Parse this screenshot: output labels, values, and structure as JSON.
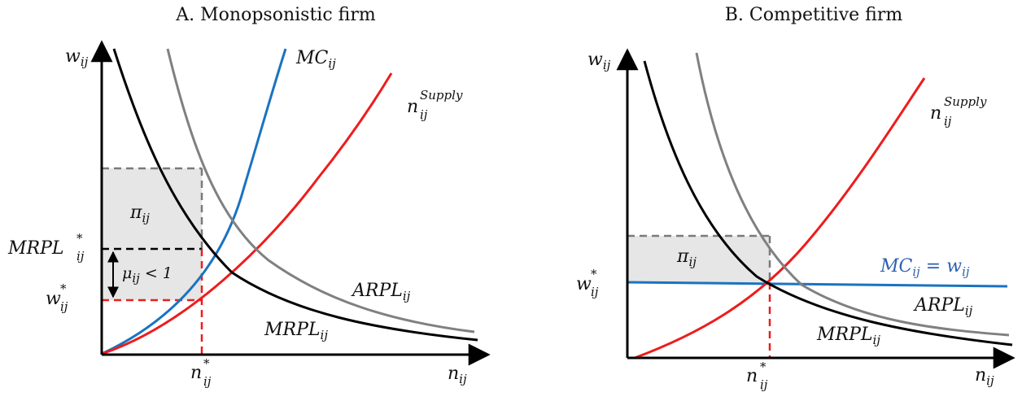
{
  "panel_a": {
    "title": "A. Monopsonistic firm",
    "y_axis_label": {
      "base": "w",
      "sub": "ij"
    },
    "x_axis_label": {
      "base": "n",
      "sub": "ij"
    },
    "curve_labels": {
      "mc": {
        "base": "MC",
        "sub": "ij"
      },
      "supply": {
        "base": "n",
        "sub": "ij",
        "sup": "Supply"
      },
      "arpl": {
        "base": "ARPL",
        "sub": "ij"
      },
      "mrpl": {
        "base": "MRPL",
        "sub": "ij"
      }
    },
    "profit_label": {
      "base": "π",
      "sub": "ij"
    },
    "markdown_label": {
      "base": "μ",
      "sub": "ij",
      "rest": " < 1"
    },
    "y_ticks": {
      "mrpl_star": {
        "base": "MRPL",
        "sub": "ij",
        "sup": "*"
      },
      "w_star": {
        "base": "w",
        "sub": "ij",
        "sup": "*"
      }
    },
    "x_tick": {
      "base": "n",
      "sub": "ij",
      "sup": "*"
    }
  },
  "panel_b": {
    "title": "B. Competitive firm",
    "y_axis_label": {
      "base": "w",
      "sub": "ij"
    },
    "x_axis_label": {
      "base": "n",
      "sub": "ij"
    },
    "curve_labels": {
      "supply": {
        "base": "n",
        "sub": "ij",
        "sup": "Supply"
      },
      "mc": {
        "base": "MC",
        "sub": "ij",
        "rest": " = w",
        "sub2": "ij"
      },
      "arpl": {
        "base": "ARPL",
        "sub": "ij"
      },
      "mrpl": {
        "base": "MRPL",
        "sub": "ij"
      }
    },
    "profit_label": {
      "base": "π",
      "sub": "ij"
    },
    "y_tick": {
      "base": "w",
      "sub": "ij",
      "sup": "*"
    },
    "x_tick": {
      "base": "n",
      "sub": "ij",
      "sup": "*"
    }
  },
  "colors": {
    "axis": "#000000",
    "mrpl": "#000000",
    "arpl": "#808080",
    "mc": "#1a73c0",
    "supply": "#ee1c1c",
    "profit_fill": "#e6e6e6",
    "guide_dashed_gray": "#7a7a7a",
    "guide_dashed_red": "#ee1c1c",
    "guide_dashed_black": "#000000"
  }
}
